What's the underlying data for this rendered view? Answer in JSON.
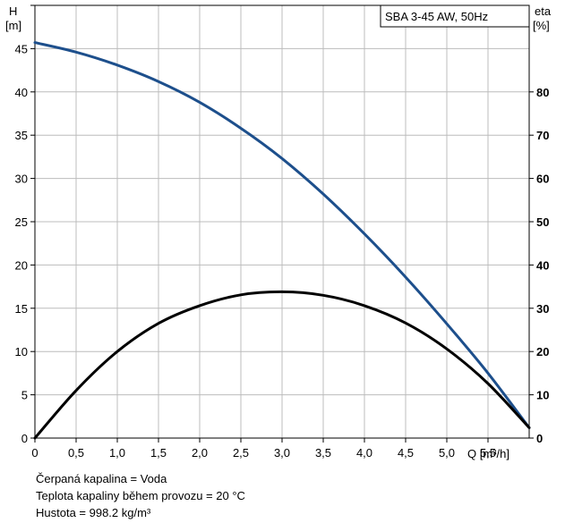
{
  "chart_data": {
    "type": "line",
    "title": "SBA 3-45 AW, 50Hz",
    "x_axis": {
      "label": "Q [m³/h]",
      "range": [
        0,
        6
      ],
      "ticks": [
        {
          "v": 0,
          "label": "0"
        },
        {
          "v": 0.5,
          "label": "0,5"
        },
        {
          "v": 1.0,
          "label": "1,0"
        },
        {
          "v": 1.5,
          "label": "1,5"
        },
        {
          "v": 2.0,
          "label": "2,0"
        },
        {
          "v": 2.5,
          "label": "2,5"
        },
        {
          "v": 3.0,
          "label": "3,0"
        },
        {
          "v": 3.5,
          "label": "3,5"
        },
        {
          "v": 4.0,
          "label": "4,0"
        },
        {
          "v": 4.5,
          "label": "4,5"
        },
        {
          "v": 5.0,
          "label": "5,0"
        },
        {
          "v": 5.5,
          "label": "5,5"
        }
      ]
    },
    "y_left": {
      "label_top": "H",
      "label_bottom": "[m]",
      "range": [
        0,
        50
      ],
      "ticks": [
        0,
        5,
        10,
        15,
        20,
        25,
        30,
        35,
        40,
        45
      ]
    },
    "y_right": {
      "label_top": "eta",
      "label_bottom": "[%]",
      "range": [
        0,
        100
      ],
      "ticks": [
        0,
        10,
        20,
        30,
        40,
        50,
        60,
        70,
        80
      ]
    },
    "grid": true,
    "series": [
      {
        "axis": "left",
        "color": "#1d4f8c",
        "x": [
          0,
          0.5,
          1.0,
          1.5,
          2.0,
          2.5,
          3.0,
          3.5,
          4.0,
          4.5,
          5.0,
          5.5,
          6.0
        ],
        "y": [
          45.7,
          44.6,
          43.1,
          41.2,
          38.8,
          35.8,
          32.3,
          28.2,
          23.6,
          18.6,
          13.2,
          7.5,
          1.2
        ]
      },
      {
        "axis": "right",
        "color": "#000000",
        "x": [
          0,
          0.5,
          1.0,
          1.5,
          2.0,
          2.5,
          3.0,
          3.5,
          4.0,
          4.5,
          5.0,
          5.5,
          6.0
        ],
        "y": [
          0,
          11,
          20,
          26.5,
          30.6,
          33.1,
          33.8,
          33.0,
          30.6,
          26.6,
          20.6,
          12.6,
          2.4
        ]
      }
    ]
  },
  "notes": [
    "Čerpaná kapalina = Voda",
    "Teplota kapaliny během provozu = 20 °C",
    "Hustota = 998.2 kg/m³"
  ]
}
